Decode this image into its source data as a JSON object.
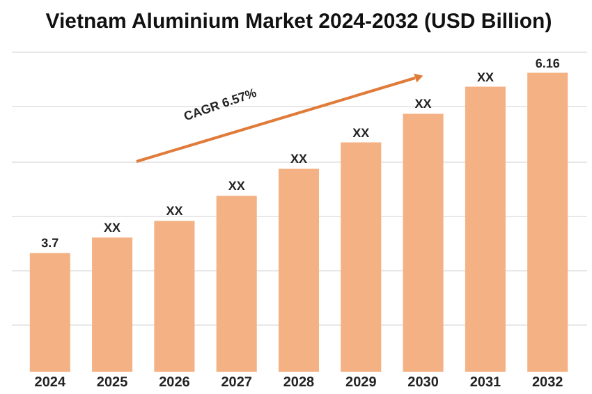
{
  "chart_data": {
    "type": "bar",
    "title": "Vietnam Aluminium Market 2024-2032 (USD Billion)",
    "categories": [
      "2024",
      "2025",
      "2026",
      "2027",
      "2028",
      "2029",
      "2030",
      "2031",
      "2032"
    ],
    "values": [
      3.7,
      3.91,
      4.14,
      4.48,
      4.85,
      5.21,
      5.6,
      5.97,
      6.16
    ],
    "value_labels": [
      "3.7",
      "XX",
      "XX",
      "XX",
      "XX",
      "XX",
      "XX",
      "XX",
      "6.16"
    ],
    "color": "#f4b183",
    "grid": "y",
    "tick_labels": "x",
    "ylim": [
      2.08,
      6.45
    ],
    "yticks": [
      {
        "value": 2.72,
        "label": null
      },
      {
        "value": 3.47,
        "label": null
      },
      {
        "value": 4.21,
        "label": null
      },
      {
        "value": 4.94,
        "label": null
      },
      {
        "value": 5.7,
        "label": null
      },
      {
        "value": 6.45,
        "label": null
      }
    ],
    "annotations": [
      "CAGR 6.57%"
    ]
  }
}
